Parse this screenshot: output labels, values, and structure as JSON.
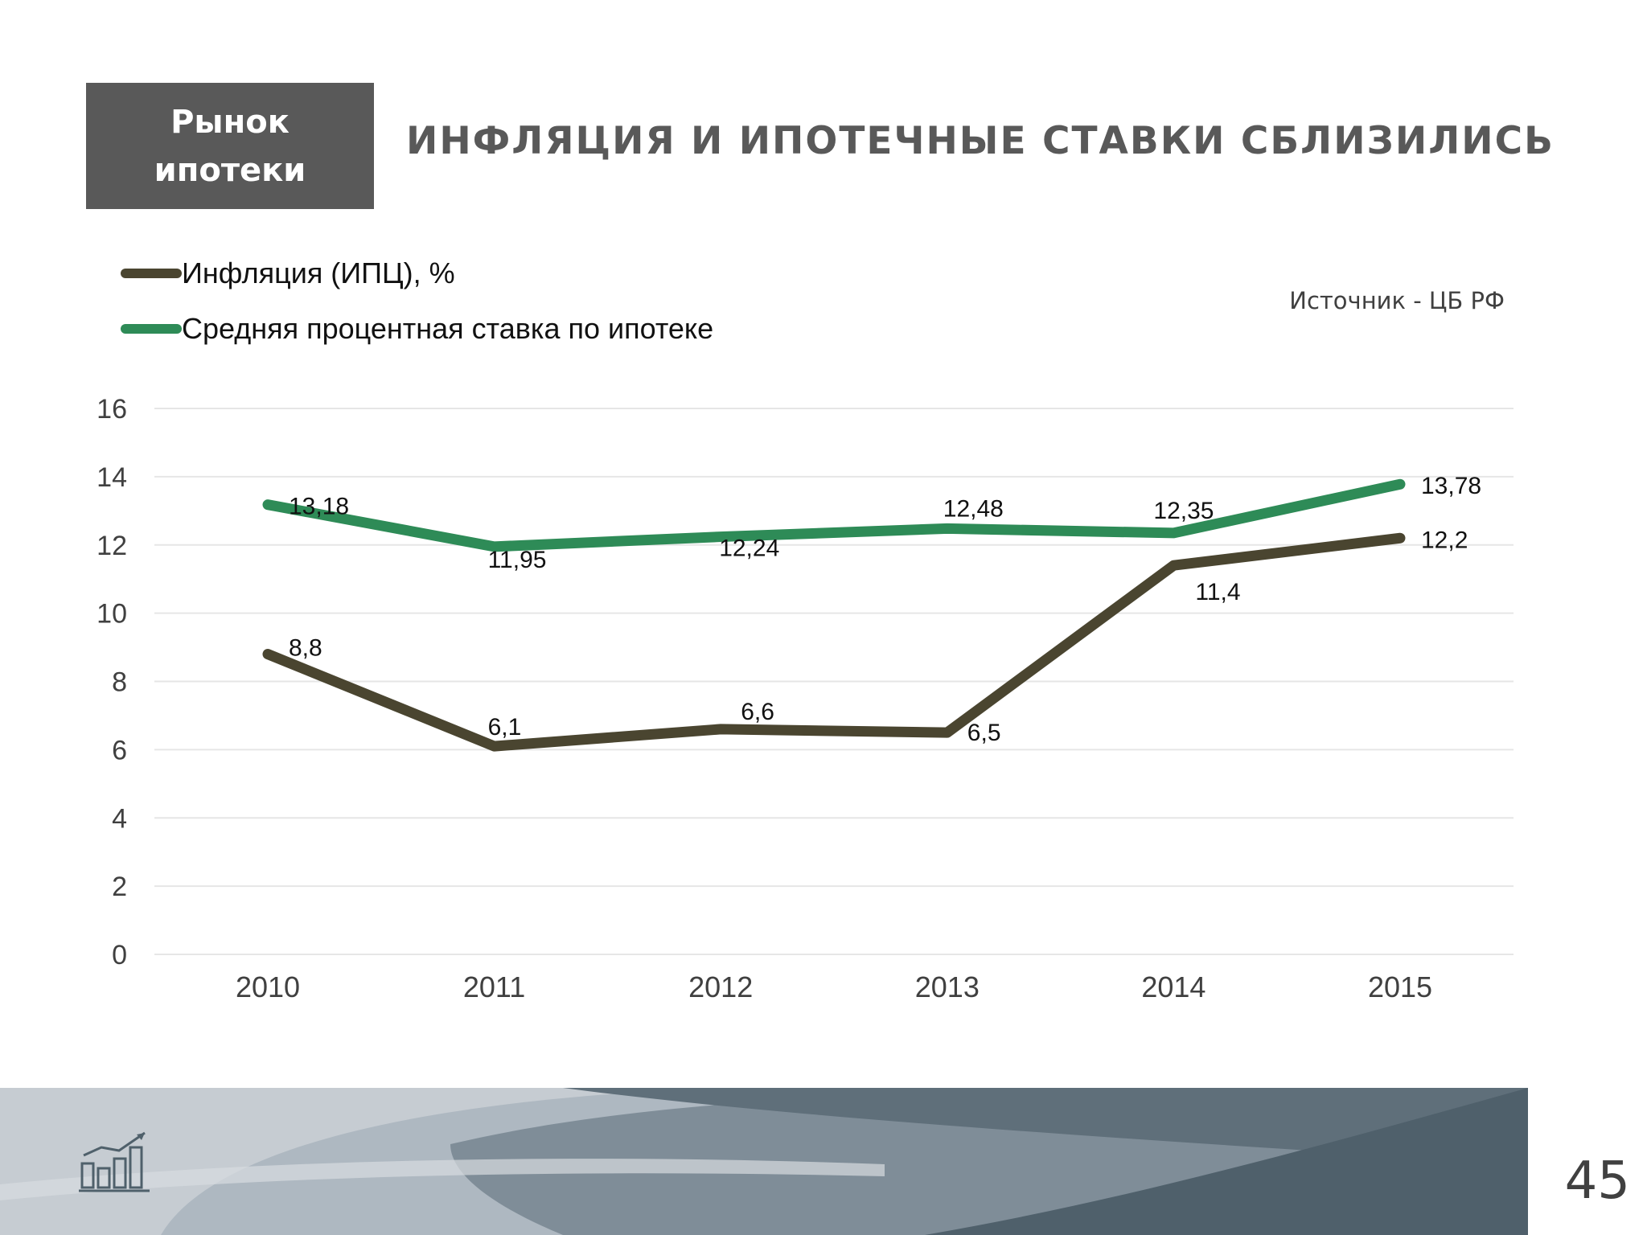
{
  "slide": {
    "section_label_line1": "Рынок",
    "section_label_line2": "ипотеки",
    "title": "ИНФЛЯЦИЯ И ИПОТЕЧНЫЕ СТАВКИ СБЛИЗИЛИСЬ",
    "source": "Источник  - ЦБ РФ",
    "page_number": "45",
    "footer_icon": "bar-chart-growth-icon"
  },
  "colors": {
    "inflation": "#4a4530",
    "mortgage": "#2e8b57",
    "badge_bg": "#595959",
    "grid": "#e6e6e6",
    "text": "#404040"
  },
  "chart_data": {
    "type": "line",
    "x": [
      "2010",
      "2011",
      "2012",
      "2013",
      "2014",
      "2015"
    ],
    "series": [
      {
        "name": "Инфляция (ИПЦ), %",
        "values": [
          8.8,
          6.1,
          6.6,
          6.5,
          11.4,
          12.2
        ],
        "labels": [
          "8,8",
          "6,1",
          "6,6",
          "6,5",
          "11,4",
          "12,2"
        ]
      },
      {
        "name": "Средняя процентная ставка по ипотеке",
        "values": [
          13.18,
          11.95,
          12.24,
          12.48,
          12.35,
          13.78
        ],
        "labels": [
          "13,18",
          "11,95",
          "12,24",
          "12,48",
          "12,35",
          "13,78"
        ]
      }
    ],
    "ylim": [
      0,
      16
    ],
    "yticks": [
      "0",
      "2",
      "4",
      "6",
      "8",
      "10",
      "12",
      "14",
      "16"
    ],
    "grid": true,
    "legend": "top-left"
  }
}
